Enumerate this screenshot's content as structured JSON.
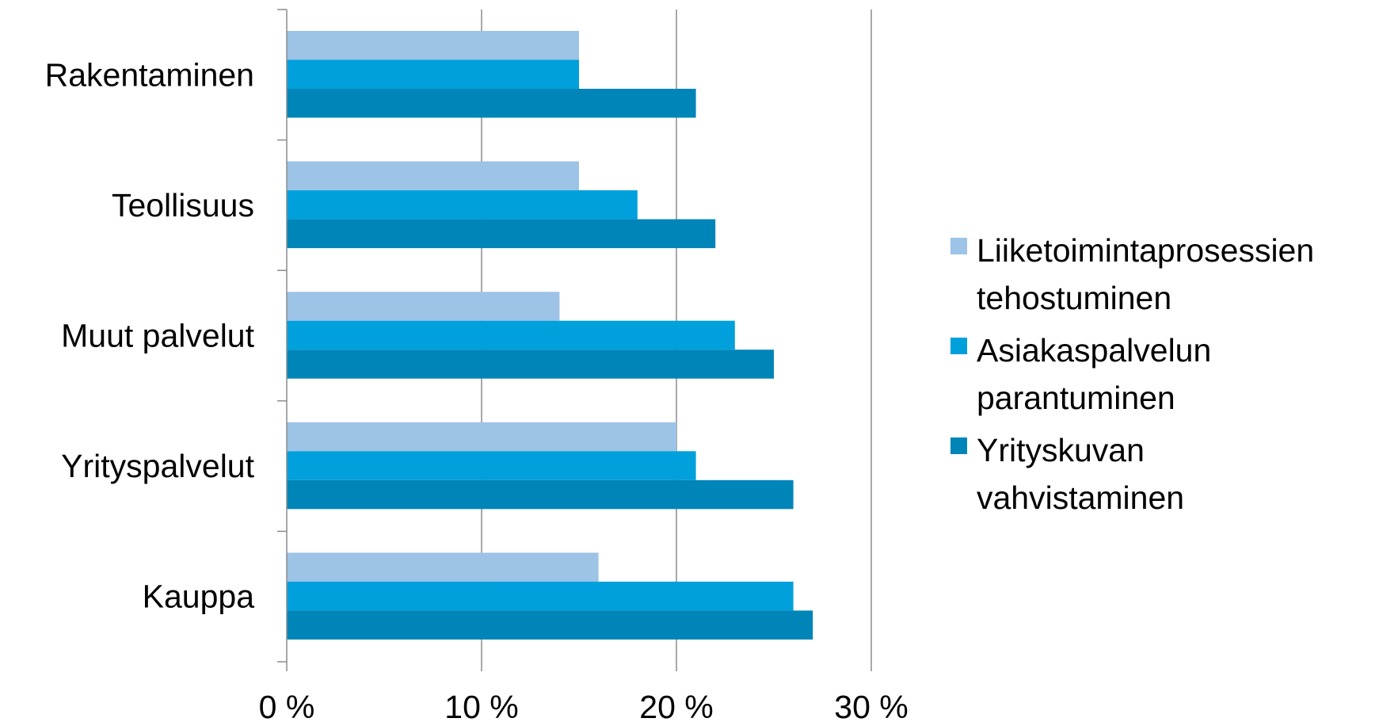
{
  "chart_data": {
    "type": "bar",
    "orientation": "horizontal",
    "categories": [
      "Rakentaminen",
      "Teollisuus",
      "Muut palvelut",
      "Yrityspalvelut",
      "Kauppa"
    ],
    "series": [
      {
        "name": "Liiketoimintaprosessien\ntehostuminen",
        "color": "#9dc3e6",
        "values": [
          15,
          15,
          14,
          20,
          16
        ]
      },
      {
        "name": "Asiakaspalvelun\nparantuminen",
        "color": "#00a0dc",
        "values": [
          15,
          18,
          23,
          21,
          26
        ]
      },
      {
        "name": "Yrityskuvan\nvahvistaminen",
        "color": "#0085b8",
        "values": [
          21,
          22,
          25,
          26,
          27
        ]
      }
    ],
    "xlim": [
      0,
      30
    ],
    "xticks": [
      0,
      10,
      20,
      30
    ],
    "xtick_labels": [
      "0 %",
      "10 %",
      "20 %",
      "30 %"
    ],
    "grid": "vertical",
    "legend_position": "right",
    "title": "",
    "xlabel": "",
    "ylabel": ""
  }
}
